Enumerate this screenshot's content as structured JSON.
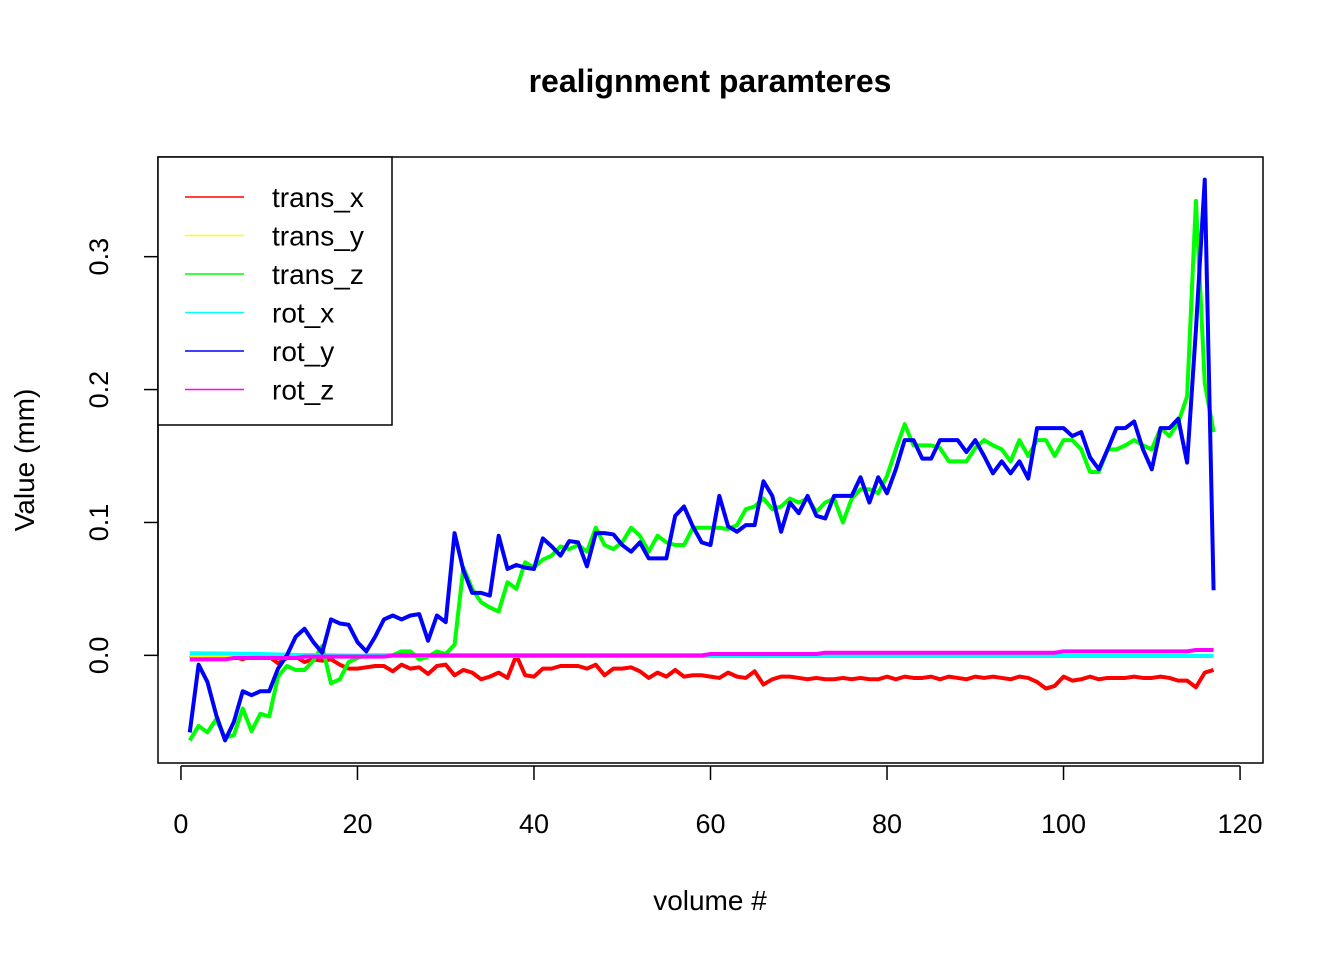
{
  "chart_data": {
    "type": "line",
    "title": "realignment paramteres",
    "xlabel": "volume #",
    "ylabel": "Value (mm)",
    "xlim": [
      -2.6,
      122.6
    ],
    "ylim": [
      -0.081,
      0.375
    ],
    "xticks": [
      0,
      20,
      40,
      60,
      80,
      100,
      120
    ],
    "yticks": [
      0.0,
      0.1,
      0.2,
      0.3
    ],
    "ytick_labels": [
      "0.0",
      "0.1",
      "0.2",
      "0.3"
    ],
    "grid": false,
    "legend_position": "top-left",
    "x_start": 1,
    "series": [
      {
        "name": "trans_x",
        "color": "#ff0000",
        "values": [
          0.0,
          -0.002,
          0.0,
          -0.001,
          -0.002,
          -0.001,
          -0.003,
          0.0,
          -0.002,
          -0.001,
          -0.006,
          -0.002,
          -0.001,
          -0.005,
          -0.003,
          -0.004,
          -0.003,
          -0.007,
          -0.01,
          -0.01,
          -0.009,
          -0.008,
          -0.008,
          -0.012,
          -0.007,
          -0.01,
          -0.009,
          -0.014,
          -0.008,
          -0.007,
          -0.015,
          -0.011,
          -0.013,
          -0.018,
          -0.016,
          -0.013,
          -0.017,
          0.0,
          -0.015,
          -0.016,
          -0.01,
          -0.01,
          -0.008,
          -0.008,
          -0.008,
          -0.01,
          -0.007,
          -0.015,
          -0.01,
          -0.01,
          -0.009,
          -0.012,
          -0.017,
          -0.013,
          -0.016,
          -0.011,
          -0.016,
          -0.015,
          -0.015,
          -0.016,
          -0.017,
          -0.013,
          -0.016,
          -0.017,
          -0.012,
          -0.022,
          -0.018,
          -0.016,
          -0.016,
          -0.017,
          -0.018,
          -0.017,
          -0.018,
          -0.018,
          -0.017,
          -0.018,
          -0.017,
          -0.018,
          -0.018,
          -0.016,
          -0.018,
          -0.016,
          -0.017,
          -0.017,
          -0.016,
          -0.018,
          -0.016,
          -0.017,
          -0.018,
          -0.016,
          -0.017,
          -0.016,
          -0.017,
          -0.018,
          -0.016,
          -0.017,
          -0.02,
          -0.025,
          -0.023,
          -0.016,
          -0.019,
          -0.018,
          -0.016,
          -0.018,
          -0.017,
          -0.017,
          -0.017,
          -0.016,
          -0.017,
          -0.017,
          -0.016,
          -0.017,
          -0.019,
          -0.019,
          -0.024,
          -0.013,
          -0.011
        ]
      },
      {
        "name": "trans_y",
        "color": "#ffff00",
        "values": [
          0.0,
          0.0,
          0.0,
          0.0,
          0.0,
          0.0,
          0.0,
          0.0,
          0.0,
          0.0,
          0.0,
          0.0,
          0.0,
          0.0,
          0.0,
          0.0,
          0.0,
          0.0,
          0.0,
          0.0,
          0.0,
          0.0,
          0.0,
          0.0,
          0.0,
          0.0,
          0.0,
          0.0,
          0.0,
          0.0,
          0.0,
          0.0,
          0.0,
          0.0,
          0.0,
          0.0,
          0.0,
          0.0,
          0.0,
          0.0,
          0.0,
          0.0,
          0.0,
          0.0,
          0.0,
          0.0,
          0.0,
          0.0,
          0.0,
          0.0,
          0.0,
          0.0,
          0.0,
          0.0,
          0.0,
          0.0,
          0.0,
          0.0,
          0.0,
          0.0,
          0.0,
          0.0,
          0.0,
          0.0,
          0.0,
          0.0,
          0.0,
          0.0,
          0.0,
          0.0,
          0.0,
          0.0,
          0.0,
          0.0,
          0.0,
          0.0,
          0.0,
          0.0,
          0.0,
          0.0,
          0.0,
          0.0,
          0.0,
          0.0,
          0.0,
          0.0,
          0.0,
          0.0,
          0.0,
          0.0,
          0.0,
          0.0,
          0.0,
          0.0,
          0.0,
          0.0,
          0.0,
          0.0,
          0.0,
          0.0,
          0.0,
          0.0,
          0.0,
          0.0,
          0.0,
          0.0,
          0.0,
          0.0,
          0.0,
          0.0,
          0.0,
          0.0,
          0.0,
          0.0,
          0.0,
          0.0,
          0.0
        ]
      },
      {
        "name": "trans_z",
        "color": "#00ff00",
        "values": [
          -0.064,
          -0.053,
          -0.058,
          -0.048,
          -0.062,
          -0.06,
          -0.04,
          -0.057,
          -0.044,
          -0.046,
          -0.016,
          -0.008,
          -0.011,
          -0.011,
          -0.004,
          0.007,
          -0.021,
          -0.018,
          -0.005,
          -0.002,
          0.0,
          0.0,
          0.0,
          0.0,
          0.003,
          0.003,
          -0.003,
          -0.001,
          0.003,
          0.001,
          0.008,
          0.066,
          0.05,
          0.04,
          0.036,
          0.033,
          0.055,
          0.05,
          0.07,
          0.066,
          0.072,
          0.075,
          0.082,
          0.08,
          0.083,
          0.078,
          0.096,
          0.083,
          0.08,
          0.085,
          0.096,
          0.09,
          0.078,
          0.09,
          0.085,
          0.083,
          0.083,
          0.096,
          0.096,
          0.096,
          0.096,
          0.095,
          0.098,
          0.11,
          0.112,
          0.118,
          0.11,
          0.112,
          0.118,
          0.115,
          0.118,
          0.108,
          0.115,
          0.118,
          0.1,
          0.118,
          0.125,
          0.125,
          0.122,
          0.135,
          0.155,
          0.174,
          0.158,
          0.158,
          0.158,
          0.156,
          0.146,
          0.146,
          0.146,
          0.156,
          0.162,
          0.158,
          0.155,
          0.146,
          0.162,
          0.15,
          0.162,
          0.162,
          0.15,
          0.162,
          0.162,
          0.155,
          0.138,
          0.138,
          0.155,
          0.155,
          0.158,
          0.162,
          0.158,
          0.155,
          0.171,
          0.165,
          0.175,
          0.195,
          0.342,
          0.205,
          0.168
        ]
      },
      {
        "name": "rot_x",
        "color": "#00ffff",
        "values": [
          0.0016,
          0.0016,
          0.0015,
          0.0015,
          0.0014,
          0.0013,
          0.0012,
          0.0011,
          0.001,
          0.0008,
          0.0006,
          0.0005,
          0.0004,
          0.0003,
          0.0002,
          0.0001,
          0.0,
          -0.0001,
          -0.0002,
          -0.0003,
          -0.0003,
          -0.0004,
          -0.0004,
          -0.0004,
          -0.0005,
          -0.0005,
          -0.0005,
          -0.0005,
          -0.0005,
          -0.0005,
          -0.0005,
          -0.0005,
          -0.0005,
          -0.0005,
          -0.0005,
          -0.0005,
          -0.0005,
          -0.0005,
          -0.0005,
          -0.0005,
          -0.0005,
          -0.0005,
          -0.0005,
          -0.0005,
          -0.0005,
          -0.0005,
          -0.0005,
          -0.0005,
          -0.0005,
          -0.0005,
          -0.0005,
          -0.0005,
          -0.0005,
          -0.0005,
          -0.0005,
          -0.0005,
          -0.0005,
          -0.0005,
          -0.0005,
          -0.0005,
          -0.0005,
          -0.0005,
          -0.0005,
          -0.0005,
          -0.0005,
          -0.0005,
          -0.0005,
          -0.0005,
          -0.0005,
          -0.0005,
          -0.0005,
          -0.0005,
          -0.0005,
          -0.0005,
          -0.0005,
          -0.0005,
          -0.0005,
          -0.0005,
          -0.0005,
          -0.0005,
          -0.0005,
          -0.0005,
          -0.0005,
          -0.0005,
          -0.0005,
          -0.0005,
          -0.0005,
          -0.0005,
          -0.0005,
          -0.0005,
          -0.0005,
          -0.0005,
          -0.0005,
          -0.0005,
          -0.0005,
          -0.0005,
          -0.0005,
          -0.0005,
          -0.0005,
          -0.0005,
          -0.0005,
          -0.0005,
          -0.0005,
          -0.0005,
          -0.0005,
          -0.0005,
          -0.0005,
          -0.0005,
          -0.0005,
          -0.0005,
          -0.0005,
          -0.0005,
          -0.0005,
          -0.0005,
          -0.0005,
          -0.0005,
          -0.0005
        ]
      },
      {
        "name": "rot_y",
        "color": "#0000ff",
        "values": [
          -0.058,
          -0.007,
          -0.02,
          -0.045,
          -0.064,
          -0.05,
          -0.027,
          -0.03,
          -0.027,
          -0.027,
          -0.01,
          0.0,
          0.014,
          0.02,
          0.01,
          0.002,
          0.027,
          0.024,
          0.023,
          0.01,
          0.003,
          0.014,
          0.027,
          0.03,
          0.027,
          0.03,
          0.031,
          0.011,
          0.03,
          0.025,
          0.092,
          0.064,
          0.047,
          0.047,
          0.045,
          0.09,
          0.065,
          0.068,
          0.066,
          0.065,
          0.088,
          0.082,
          0.075,
          0.086,
          0.085,
          0.067,
          0.092,
          0.092,
          0.091,
          0.083,
          0.078,
          0.085,
          0.073,
          0.073,
          0.073,
          0.105,
          0.112,
          0.097,
          0.085,
          0.083,
          0.12,
          0.097,
          0.093,
          0.098,
          0.098,
          0.131,
          0.12,
          0.093,
          0.115,
          0.107,
          0.12,
          0.105,
          0.103,
          0.12,
          0.12,
          0.12,
          0.134,
          0.115,
          0.134,
          0.122,
          0.14,
          0.162,
          0.162,
          0.148,
          0.148,
          0.162,
          0.162,
          0.162,
          0.153,
          0.162,
          0.15,
          0.137,
          0.146,
          0.137,
          0.146,
          0.133,
          0.171,
          0.171,
          0.171,
          0.171,
          0.165,
          0.168,
          0.149,
          0.14,
          0.155,
          0.171,
          0.171,
          0.176,
          0.155,
          0.14,
          0.171,
          0.171,
          0.178,
          0.145,
          0.245,
          0.358,
          0.049
        ]
      },
      {
        "name": "rot_z",
        "color": "#ff00ff",
        "values": [
          -0.003,
          -0.003,
          -0.003,
          -0.003,
          -0.003,
          -0.002,
          -0.002,
          -0.002,
          -0.002,
          -0.002,
          -0.002,
          -0.002,
          -0.002,
          -0.001,
          -0.001,
          -0.001,
          -0.001,
          -0.001,
          -0.001,
          -0.001,
          -0.001,
          -0.001,
          -0.001,
          0.0,
          0.0,
          0.0,
          0.0,
          0.0,
          0.0,
          0.0,
          0.0,
          0.0,
          0.0,
          0.0,
          0.0,
          0.0,
          0.0,
          0.0,
          0.0,
          0.0,
          0.0,
          0.0,
          0.0,
          0.0,
          0.0,
          0.0,
          0.0,
          0.0,
          0.0,
          0.0,
          0.0,
          0.0,
          0.0,
          0.0,
          0.0,
          0.0,
          0.0,
          0.0,
          0.0,
          0.001,
          0.001,
          0.001,
          0.001,
          0.001,
          0.001,
          0.001,
          0.001,
          0.001,
          0.001,
          0.001,
          0.001,
          0.001,
          0.002,
          0.002,
          0.002,
          0.002,
          0.002,
          0.002,
          0.002,
          0.002,
          0.002,
          0.002,
          0.002,
          0.002,
          0.002,
          0.002,
          0.002,
          0.002,
          0.002,
          0.002,
          0.002,
          0.002,
          0.002,
          0.002,
          0.002,
          0.002,
          0.002,
          0.002,
          0.002,
          0.003,
          0.003,
          0.003,
          0.003,
          0.003,
          0.003,
          0.003,
          0.003,
          0.003,
          0.003,
          0.003,
          0.003,
          0.003,
          0.003,
          0.003,
          0.004,
          0.004,
          0.004
        ]
      }
    ]
  }
}
